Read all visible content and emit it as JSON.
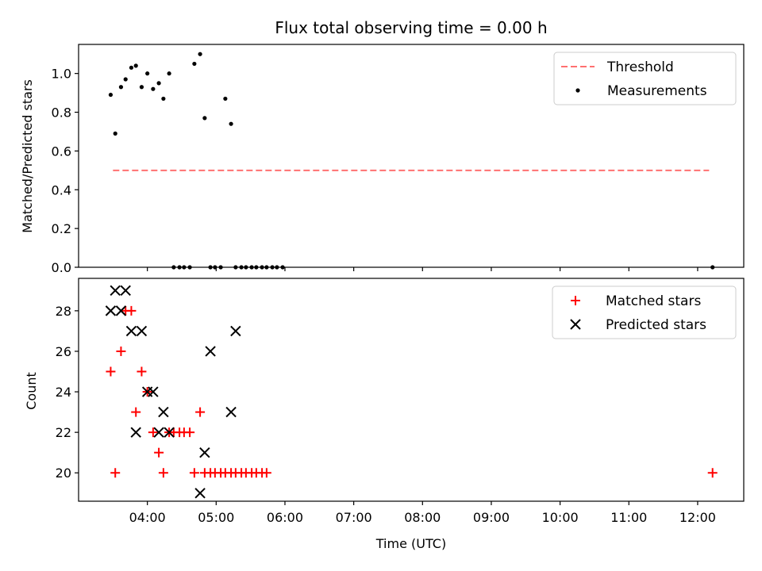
{
  "chart_data": [
    {
      "type": "scatter",
      "title": "Flux total observing time = 0.00 h",
      "xlabel": "",
      "ylabel": "Matched/Predicted stars",
      "ylim": [
        0,
        1.15
      ],
      "yticks": [
        "0.0",
        "0.2",
        "0.4",
        "0.6",
        "0.8",
        "1.0"
      ],
      "ytick_values": [
        0,
        0.2,
        0.4,
        0.6,
        0.8,
        1.0
      ],
      "xlim_hours": [
        3.0,
        12.67
      ],
      "legend_position": "top-right",
      "threshold": {
        "name": "Threshold",
        "x": [
          "03:30",
          "12:10"
        ],
        "value": 0.5,
        "color": "#ff7070",
        "style": "dashed"
      },
      "series": [
        {
          "name": "Measurements",
          "color": "#000000",
          "marker": "dot",
          "x": [
            "03:28",
            "03:32",
            "03:37",
            "03:41",
            "03:46",
            "03:50",
            "03:55",
            "04:00",
            "04:05",
            "04:10",
            "04:14",
            "04:19",
            "04:23",
            "04:28",
            "04:32",
            "04:37",
            "04:41",
            "04:46",
            "04:50",
            "04:55",
            "04:59",
            "05:04",
            "05:08",
            "05:13",
            "05:17",
            "05:22",
            "05:26",
            "05:31",
            "05:35",
            "05:40",
            "05:44",
            "05:49",
            "05:53",
            "05:58",
            "12:13"
          ],
          "y": [
            0.89,
            0.69,
            0.93,
            0.97,
            1.03,
            1.04,
            0.93,
            1.0,
            0.92,
            0.95,
            0.87,
            1.0,
            0.0,
            0.0,
            0.0,
            0.0,
            1.05,
            1.1,
            0.77,
            0.0,
            0.0,
            0.0,
            0.87,
            0.74,
            0.0,
            0.0,
            0.0,
            0.0,
            0.0,
            0.0,
            0.0,
            0.0,
            0.0,
            0.0,
            0.0
          ]
        }
      ]
    },
    {
      "type": "scatter",
      "title": "",
      "xlabel": "Time (UTC)",
      "ylabel": "Count",
      "ylim": [
        18.6,
        29.6
      ],
      "yticks": [
        "20",
        "22",
        "24",
        "26",
        "28"
      ],
      "ytick_values": [
        20,
        22,
        24,
        26,
        28
      ],
      "xlim_hours": [
        3.0,
        12.67
      ],
      "xticks": [
        "04:00",
        "05:00",
        "06:00",
        "07:00",
        "08:00",
        "09:00",
        "10:00",
        "11:00",
        "12:00"
      ],
      "xtick_values_hours": [
        4,
        5,
        6,
        7,
        8,
        9,
        10,
        11,
        12
      ],
      "legend_position": "top-right",
      "series": [
        {
          "name": "Matched stars",
          "color": "#ff0000",
          "marker": "plus",
          "x": [
            "03:28",
            "03:32",
            "03:37",
            "03:41",
            "03:46",
            "03:50",
            "03:55",
            "04:00",
            "04:05",
            "04:10",
            "04:14",
            "04:19",
            "04:23",
            "04:28",
            "04:32",
            "04:37",
            "04:41",
            "04:46",
            "04:50",
            "04:55",
            "04:59",
            "05:04",
            "05:08",
            "05:13",
            "05:17",
            "05:22",
            "05:26",
            "05:31",
            "05:35",
            "05:40",
            "05:44",
            "12:13"
          ],
          "y": [
            25,
            20,
            26,
            28,
            28,
            23,
            25,
            24,
            22,
            21,
            20,
            22,
            22,
            22,
            22,
            22,
            20,
            23,
            20,
            20,
            20,
            20,
            20,
            20,
            20,
            20,
            20,
            20,
            20,
            20,
            20,
            20
          ]
        },
        {
          "name": "Predicted stars",
          "color": "#000000",
          "marker": "x",
          "x": [
            "03:28",
            "03:32",
            "03:37",
            "03:41",
            "03:46",
            "03:50",
            "03:55",
            "04:00",
            "04:05",
            "04:10",
            "04:14",
            "04:19",
            "04:46",
            "04:50",
            "04:55",
            "05:13",
            "05:17"
          ],
          "y": [
            28,
            29,
            28,
            29,
            27,
            22,
            27,
            24,
            24,
            22,
            23,
            22,
            19,
            21,
            26,
            23,
            27
          ]
        }
      ]
    }
  ]
}
